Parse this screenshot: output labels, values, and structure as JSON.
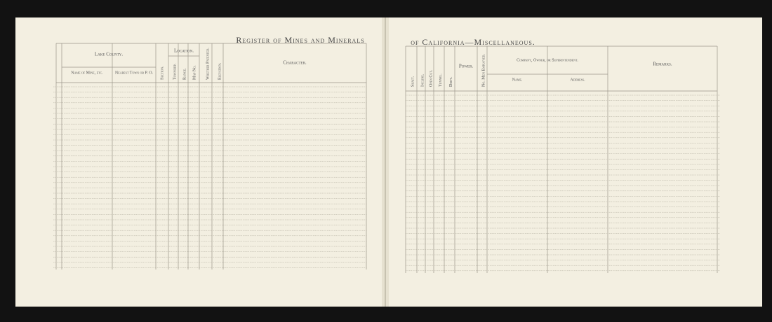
{
  "left_page": {
    "running_head": "Register of Mines and Minerals",
    "table": {
      "group_title": "Lake County.",
      "location_header": "Location.",
      "columns": [
        "Name of Mine, etc.",
        "Nearest Town or P. O.",
        "Section.",
        "Township.",
        "Range.",
        "Map No.",
        "Whether Patented.",
        "Elevation.",
        "Character."
      ]
    }
  },
  "right_page": {
    "running_head": "of California—Miscellaneous.",
    "table": {
      "company_header": "Company, Owner, or Superintendent.",
      "columns": [
        "Shaft.",
        "Incline.",
        "Open Cut.",
        "Tunnel.",
        "Drift.",
        "Power.",
        "No. Men Employed.",
        "Name.",
        "Address.",
        "Remarks."
      ]
    }
  }
}
